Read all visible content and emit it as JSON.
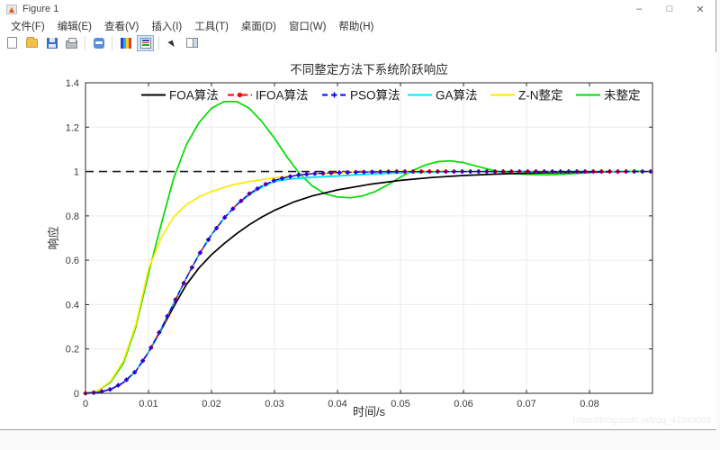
{
  "window": {
    "title": "Figure 1",
    "controls": {
      "minimize": "–",
      "maximize": "□",
      "close": "✕"
    }
  },
  "menu": {
    "items": [
      {
        "label": "文件(F)"
      },
      {
        "label": "编辑(E)"
      },
      {
        "label": "查看(V)"
      },
      {
        "label": "插入(I)"
      },
      {
        "label": "工具(T)"
      },
      {
        "label": "桌面(D)"
      },
      {
        "label": "窗口(W)"
      },
      {
        "label": "帮助(H)"
      }
    ]
  },
  "toolbar": {
    "buttons": [
      {
        "name": "new-file"
      },
      {
        "name": "open-file"
      },
      {
        "name": "save"
      },
      {
        "name": "print"
      },
      {
        "name": "link-plot"
      },
      {
        "name": "insert-colorbar"
      },
      {
        "name": "insert-legend"
      },
      {
        "name": "edit-plot"
      },
      {
        "name": "plot-tools"
      }
    ],
    "active_button": "insert-legend"
  },
  "watermark": "https://blog.csdn.net/qq_42249050",
  "chart_data": {
    "type": "line",
    "title": "不同整定方法下系统阶跃响应",
    "xlabel": "时间/s",
    "ylabel": "响应",
    "xlim": [
      0,
      0.09
    ],
    "ylim": [
      0,
      1.4
    ],
    "xtick_values": [
      0,
      0.01,
      0.02,
      0.03,
      0.04,
      0.05,
      0.06,
      0.07,
      0.08
    ],
    "xtick_labels": [
      "0",
      "0.01",
      "0.02",
      "0.03",
      "0.04",
      "0.05",
      "0.06",
      "0.07",
      "0.08"
    ],
    "ytick_values": [
      0,
      0.2,
      0.4,
      0.6,
      0.8,
      1,
      1.2,
      1.4
    ],
    "ytick_labels": [
      "0",
      "0.2",
      "0.4",
      "0.6",
      "0.8",
      "1",
      "1.2",
      "1.4"
    ],
    "grid": true,
    "legend_position": "top-inside-horizontal",
    "marker_dt": 0.0013,
    "reference_line": {
      "y": 1.0,
      "style": "dashed",
      "color": "#1a1a1a"
    },
    "series": [
      {
        "name": "FOA算法",
        "color": "#000000",
        "style": "solid",
        "marker": "none",
        "x": [
          0,
          0.002,
          0.004,
          0.006,
          0.008,
          0.01,
          0.012,
          0.014,
          0.016,
          0.018,
          0.02,
          0.022,
          0.024,
          0.026,
          0.028,
          0.03,
          0.033,
          0.036,
          0.04,
          0.045,
          0.05,
          0.055,
          0.06,
          0.065,
          0.07,
          0.075,
          0.08,
          0.085,
          0.09
        ],
        "y": [
          0,
          0.004,
          0.018,
          0.048,
          0.1,
          0.185,
          0.285,
          0.39,
          0.49,
          0.565,
          0.625,
          0.675,
          0.72,
          0.76,
          0.795,
          0.825,
          0.862,
          0.89,
          0.917,
          0.942,
          0.96,
          0.973,
          0.982,
          0.988,
          0.992,
          0.995,
          0.997,
          0.999,
          1.0
        ]
      },
      {
        "name": "IFOA算法",
        "color": "#ff0000",
        "style": "dashdot",
        "marker": "circle",
        "x": [
          0,
          0.002,
          0.004,
          0.006,
          0.008,
          0.01,
          0.012,
          0.014,
          0.016,
          0.018,
          0.02,
          0.022,
          0.024,
          0.026,
          0.028,
          0.03,
          0.032,
          0.034,
          0.036,
          0.04,
          0.045,
          0.05,
          0.055,
          0.06,
          0.07,
          0.08,
          0.09
        ],
        "y": [
          0,
          0.004,
          0.018,
          0.048,
          0.1,
          0.185,
          0.29,
          0.405,
          0.52,
          0.625,
          0.715,
          0.79,
          0.85,
          0.9,
          0.935,
          0.96,
          0.975,
          0.985,
          0.99,
          0.995,
          0.998,
          1.0,
          1.0,
          1.0,
          1.0,
          1.0,
          1.0
        ]
      },
      {
        "name": "PSO算法",
        "color": "#0000ff",
        "style": "dashed",
        "marker": "plus",
        "x": [
          0,
          0.002,
          0.004,
          0.006,
          0.008,
          0.01,
          0.012,
          0.014,
          0.016,
          0.018,
          0.02,
          0.022,
          0.024,
          0.026,
          0.028,
          0.03,
          0.032,
          0.034,
          0.036,
          0.04,
          0.045,
          0.05,
          0.055,
          0.06,
          0.07,
          0.08,
          0.09
        ],
        "y": [
          0,
          0.004,
          0.018,
          0.048,
          0.1,
          0.185,
          0.29,
          0.405,
          0.52,
          0.625,
          0.715,
          0.79,
          0.85,
          0.9,
          0.935,
          0.96,
          0.975,
          0.985,
          0.99,
          0.995,
          0.998,
          1.0,
          1.0,
          1.0,
          1.0,
          1.0,
          1.0
        ]
      },
      {
        "name": "GA算法",
        "color": "#00e8ff",
        "style": "solid",
        "marker": "none",
        "x": [
          0,
          0.002,
          0.004,
          0.006,
          0.008,
          0.01,
          0.012,
          0.014,
          0.016,
          0.018,
          0.02,
          0.022,
          0.024,
          0.026,
          0.028,
          0.03,
          0.032,
          0.034,
          0.036,
          0.04,
          0.045,
          0.05,
          0.055,
          0.06,
          0.07,
          0.08,
          0.09
        ],
        "y": [
          0,
          0.004,
          0.018,
          0.048,
          0.1,
          0.185,
          0.29,
          0.405,
          0.52,
          0.625,
          0.715,
          0.79,
          0.85,
          0.895,
          0.93,
          0.955,
          0.965,
          0.97,
          0.974,
          0.98,
          0.988,
          0.994,
          0.998,
          1.0,
          1.0,
          1.0,
          1.0
        ]
      },
      {
        "name": "Z-N整定",
        "color": "#ffe800",
        "style": "solid",
        "marker": "none",
        "x": [
          0,
          0.002,
          0.004,
          0.006,
          0.008,
          0.01,
          0.012,
          0.014,
          0.016,
          0.018,
          0.02,
          0.023,
          0.026,
          0.03,
          0.034,
          0.038,
          0.042,
          0.046,
          0.05,
          0.06,
          0.07,
          0.08,
          0.09
        ],
        "y": [
          0,
          0.012,
          0.055,
          0.145,
          0.31,
          0.56,
          0.7,
          0.795,
          0.85,
          0.885,
          0.91,
          0.937,
          0.955,
          0.972,
          0.984,
          0.992,
          0.997,
          1.0,
          1.001,
          1.0,
          1.0,
          1.0,
          1.0
        ]
      },
      {
        "name": "未整定",
        "color": "#00dc00",
        "style": "solid",
        "marker": "none",
        "x": [
          0,
          0.002,
          0.004,
          0.006,
          0.008,
          0.01,
          0.012,
          0.014,
          0.016,
          0.018,
          0.02,
          0.022,
          0.024,
          0.026,
          0.028,
          0.03,
          0.032,
          0.034,
          0.036,
          0.038,
          0.04,
          0.042,
          0.044,
          0.046,
          0.048,
          0.05,
          0.052,
          0.054,
          0.056,
          0.058,
          0.06,
          0.062,
          0.064,
          0.066,
          0.068,
          0.07,
          0.073,
          0.076,
          0.08,
          0.084,
          0.088,
          0.09
        ],
        "y": [
          0,
          0.012,
          0.05,
          0.135,
          0.3,
          0.54,
          0.76,
          0.97,
          1.12,
          1.22,
          1.285,
          1.315,
          1.315,
          1.285,
          1.225,
          1.15,
          1.065,
          0.99,
          0.935,
          0.9,
          0.885,
          0.882,
          0.89,
          0.91,
          0.94,
          0.975,
          1.005,
          1.03,
          1.045,
          1.048,
          1.04,
          1.025,
          1.01,
          0.998,
          0.99,
          0.987,
          0.985,
          0.988,
          0.995,
          1.0,
          1.002,
          1.0
        ]
      }
    ]
  }
}
